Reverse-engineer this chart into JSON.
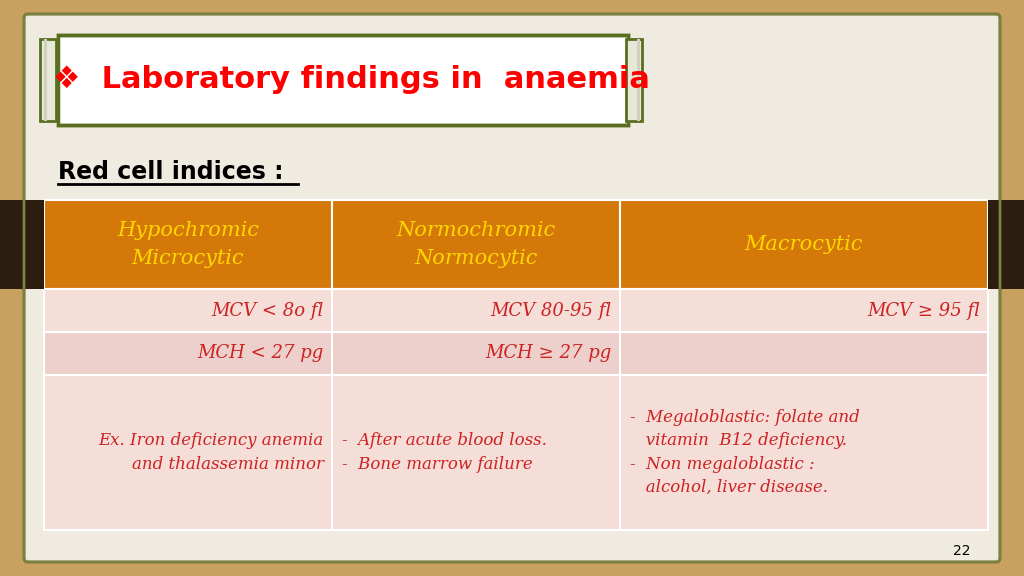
{
  "title": "❖  Laboratory findings in  anaemia",
  "subtitle": "Red cell indices :",
  "bg_color": "#C8A060",
  "panel_bg": "#F0EBE0",
  "header_bg": "#D4780A",
  "header_color": "#FFD700",
  "row1_bg": "#F5DDD8",
  "row2_bg": "#EDD0CC",
  "row3_bg": "#F5DDD8",
  "row4_bg": "#EDD0CC",
  "cell_text_color": "#CC2222",
  "col1_header": "Hypochromic\nMicrocytic",
  "col2_header": "Normochromic\nNormocytic",
  "col3_header": "Macrocytic",
  "rows": [
    [
      "MCV < 8o fl",
      "MCV 80-95 fl",
      "MCV ≥ 95 fl"
    ],
    [
      "MCH < 27 pg",
      "MCH ≥ 27 pg",
      ""
    ],
    [
      "Ex. Iron deficiency anemia\nand thalassemia minor",
      "-  After acute blood loss.\n-  Bone marrow failure",
      "-  Megaloblastic: folate and\n   vitamin  B12 deficiency.\n-  Non megaloblastic :\n   alcohol, liver disease."
    ]
  ],
  "page_number": "22",
  "title_box_border": "#5A6E20",
  "subtitle_color": "#000000",
  "dark_bar_color": "#2C1E0F",
  "outer_border_color": "#7A8040",
  "panel_border_color": "#888855"
}
